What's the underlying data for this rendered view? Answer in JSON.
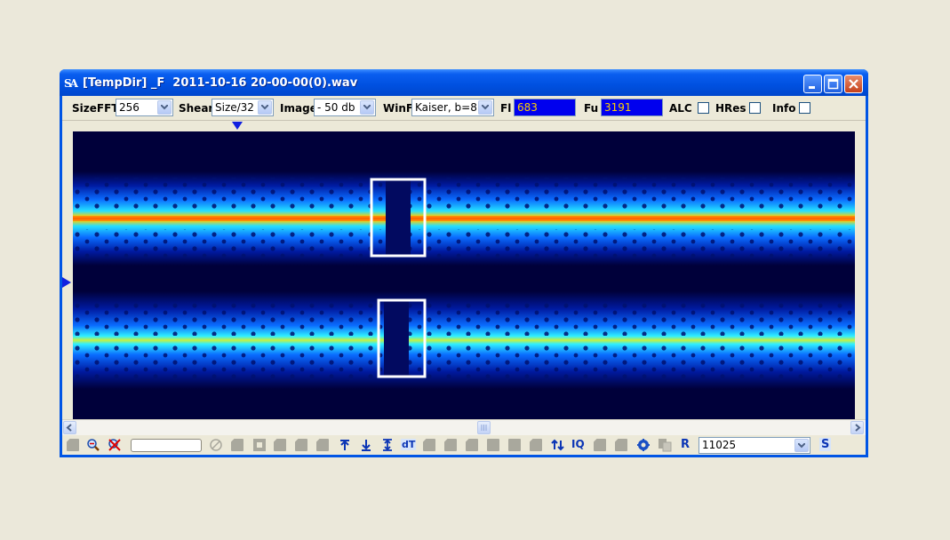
{
  "window": {
    "title": "[TempDir] _F  2011-10-16 20-00-00(0).wav",
    "app_icon": "SA"
  },
  "toolbar": {
    "sizefft_label": "SizeFFT",
    "sizefft_value": "256",
    "shear_label": "Shear",
    "shear_value": "Size/32",
    "image_label": "Image",
    "image_value": "- 50 db",
    "winf_label": "WinF",
    "winf_value": "Kaiser, b=8",
    "fl_label": "Fl",
    "fl_value": "683",
    "fu_label": "Fu",
    "fu_value": "3191",
    "alc_label": "ALC",
    "hres_label": "HRes",
    "info_label": "Info"
  },
  "bottom": {
    "dt_label": "dT",
    "iq_label": "IQ",
    "r_label": "R",
    "s_label": "S",
    "samplerate_value": "11025"
  },
  "colors": {
    "title_bar": "#0050e0",
    "freq_box_bg": "#0000ee",
    "freq_box_text": "#ffd000",
    "spectrogram_bg": "#00003a"
  },
  "icons": [
    "zoom-icon",
    "cancel-icon",
    "no-icon",
    "arrows-icon",
    "dt-icon",
    "iq-icon",
    "settings-icon",
    "copy-icon"
  ]
}
